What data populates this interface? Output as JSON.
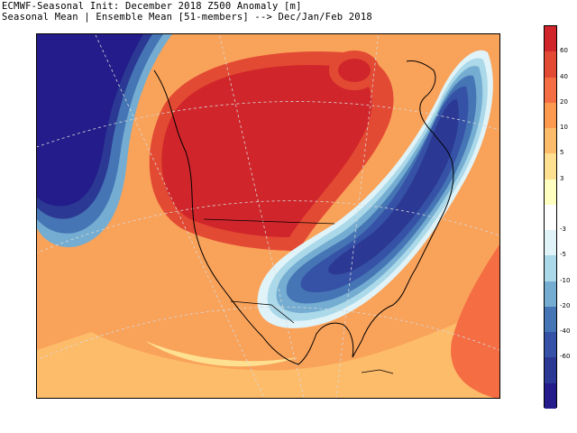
{
  "title_line1": "ECMWF-Seasonal Init: December 2018 Z500 Anomaly [m]",
  "title_line2": "Seasonal Mean | Ensemble Mean [51-members] --> Dec/Jan/Feb 2018",
  "legend": {
    "bins": [
      {
        "color": "#d0262b"
      },
      {
        "color": "#e34a33"
      },
      {
        "color": "#f46d43"
      },
      {
        "color": "#fd9a50"
      },
      {
        "color": "#fdbc6a"
      },
      {
        "color": "#fee090"
      },
      {
        "color": "#ffffbf"
      },
      {
        "color": "#ffffff"
      },
      {
        "color": "#e0f3f8"
      },
      {
        "color": "#abd9e9"
      },
      {
        "color": "#74add1"
      },
      {
        "color": "#4575b4"
      },
      {
        "color": "#3652a7"
      },
      {
        "color": "#2b3994"
      },
      {
        "color": "#231c8a"
      }
    ],
    "ticks": [
      "60",
      "40",
      "20",
      "10",
      "5",
      "3",
      "-3",
      "-5",
      "-10",
      "-20",
      "-40",
      "-60"
    ]
  },
  "colors": {
    "strong_positive": "#d0262b",
    "positive": "#f46d43",
    "weak_positive": "#fdbc6a",
    "strong_negative": "#2b2d8f",
    "negative": "#4575b4",
    "near_zero": "#ffffff"
  }
}
